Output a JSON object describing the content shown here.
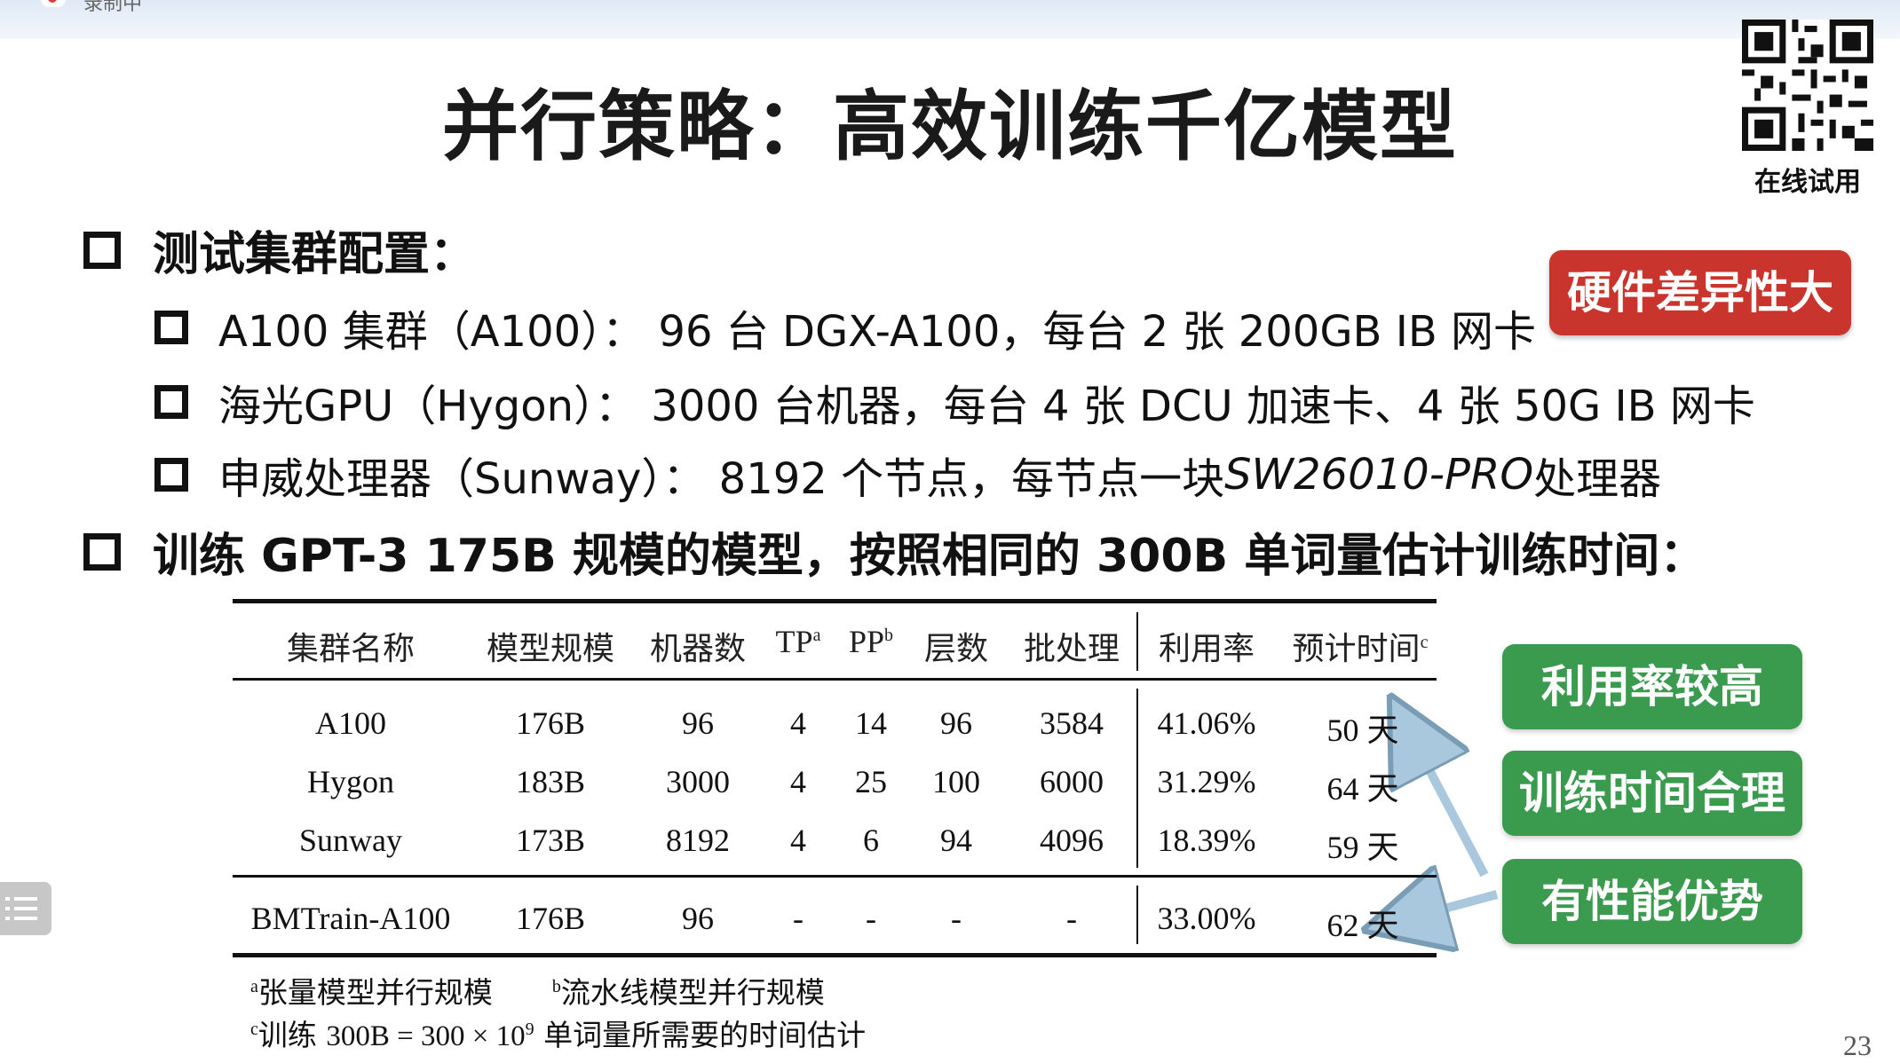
{
  "recording_label": "录制中",
  "title": "并行策略：高效训练千亿模型",
  "qr_caption": "在线试用",
  "section1": {
    "heading": "测试集群配置：",
    "items": [
      {
        "text": "A100 集群（A100）： 96 台 DGX-A100，每台 2 张 200GB IB 网卡"
      },
      {
        "text": "海光GPU（Hygon）： 3000 台机器，每台 4 张 DCU 加速卡、4 张 50G IB 网卡"
      },
      {
        "prefix": "申威处理器（Sunway）： 8192 个节点，每节点一块 ",
        "italic": "SW26010-PRO",
        "suffix": "处理器"
      }
    ]
  },
  "section2": {
    "heading": "训练 GPT-3 175B 规模的模型，按照相同的 300B 单词量估计训练时间："
  },
  "tags": {
    "hardware": "硬件差异性大",
    "util": "利用率较高",
    "time": "训练时间合理",
    "perf": "有性能优势"
  },
  "table": {
    "headers": [
      "集群名称",
      "模型规模",
      "机器数",
      "TP",
      "PP",
      "层数",
      "批处理",
      "利用率",
      "预计时间"
    ],
    "header_sups": [
      "",
      "",
      "",
      "a",
      "b",
      "",
      "",
      "",
      "c"
    ],
    "rows": [
      [
        "A100",
        "176B",
        "96",
        "4",
        "14",
        "96",
        "3584",
        "41.06%",
        "50 天"
      ],
      [
        "Hygon",
        "183B",
        "3000",
        "4",
        "25",
        "100",
        "6000",
        "31.29%",
        "64 天"
      ],
      [
        "Sunway",
        "173B",
        "8192",
        "4",
        "6",
        "94",
        "4096",
        "18.39%",
        "59 天"
      ],
      [
        "BMTrain-A100",
        "176B",
        "96",
        "-",
        "-",
        "-",
        "-",
        "33.00%",
        "62 天"
      ]
    ]
  },
  "footnotes": {
    "a_mark": "a",
    "a": "张量模型并行规模",
    "b_mark": "b",
    "b": "流水线模型并行规模",
    "c_mark": "c",
    "c_pre": "训练 ",
    "c_math": "300B = 300 × 10",
    "c_exp": "9",
    "c_post": " 单词量所需要的时间估计"
  },
  "page_number": "23",
  "colors": {
    "red_tag": "#c9342d",
    "green_tag": "#3a9a4d",
    "arrow": "#a9c8de"
  }
}
